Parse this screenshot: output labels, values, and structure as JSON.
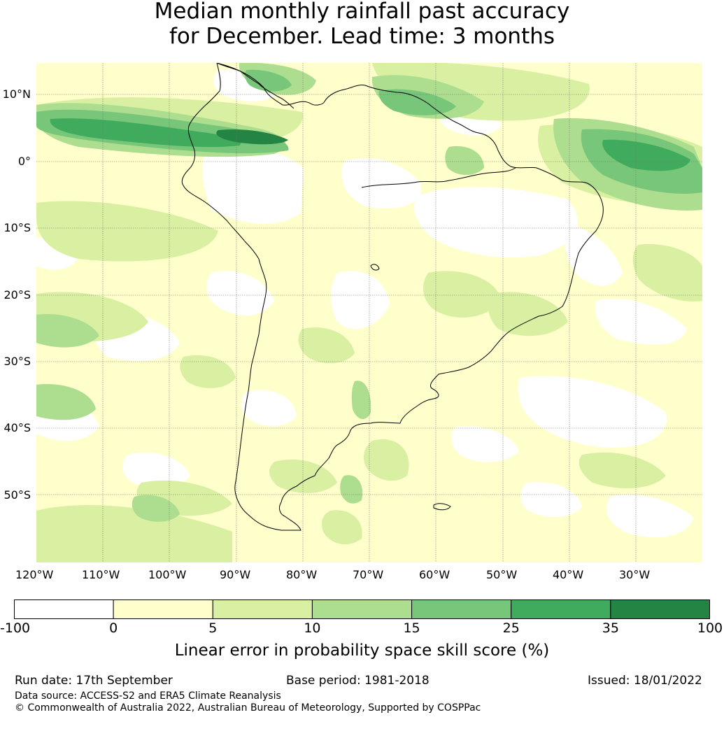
{
  "title": {
    "line1": "Median monthly rainfall past accuracy",
    "line2": "for December. Lead time: 3 months"
  },
  "map": {
    "lat_labels": [
      "10°N",
      "0°",
      "10°S",
      "20°S",
      "30°S",
      "40°S",
      "50°S"
    ],
    "lon_labels": [
      "120°W",
      "110°W",
      "100°W",
      "90°W",
      "80°W",
      "70°W",
      "60°W",
      "50°W",
      "40°W",
      "30°W"
    ],
    "colors": {
      "white": "#ffffff",
      "c0_5": "#ffffcc",
      "c5_10": "#d9f0a3",
      "c10_15": "#addd8e",
      "c15_25": "#78c679",
      "c25_35": "#41ab5d",
      "c35_100": "#238443"
    }
  },
  "colorbar": {
    "ticks": [
      "-100",
      "0",
      "5",
      "10",
      "15",
      "25",
      "35",
      "100"
    ],
    "colors": [
      "#ffffff",
      "#ffffcc",
      "#d9f0a3",
      "#addd8e",
      "#78c679",
      "#41ab5d",
      "#238443"
    ],
    "label": "Linear error in probability space skill score (%)"
  },
  "footer": {
    "run_date": "Run date: 17th September",
    "base_period": "Base period: 1981-2018",
    "issued": "Issued: 18/01/2022",
    "data_source": "Data source: ACCESS-S2 and ERA5 Climate Reanalysis",
    "copyright": "© Commonwealth of Australia 2022, Australian Bureau of Meteorology, Supported by COSPPac"
  }
}
